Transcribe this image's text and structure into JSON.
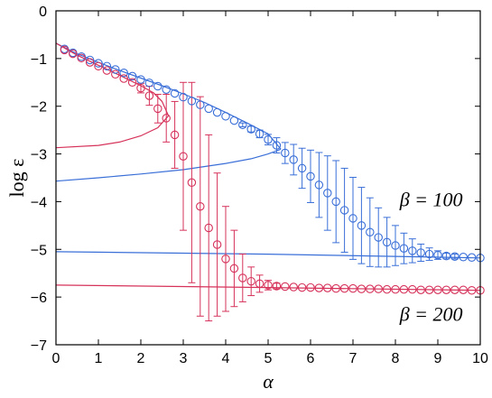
{
  "chart_data": {
    "type": "scatter",
    "xlabel": "α",
    "ylabel": "log ε",
    "xlim": [
      0,
      10
    ],
    "ylim": [
      -7,
      0
    ],
    "xticks": [
      0,
      1,
      2,
      3,
      4,
      5,
      6,
      7,
      8,
      9,
      10
    ],
    "yticks": [
      0,
      -1,
      -2,
      -3,
      -4,
      -5,
      -6,
      -7
    ],
    "grid": false,
    "legend": "none",
    "annotations": [
      {
        "text": "β = 100",
        "x": 8.1,
        "y": -4.1
      },
      {
        "text": "β = 200",
        "x": 8.1,
        "y": -6.5
      }
    ],
    "series": [
      {
        "color": "#3a6fd8",
        "points": [
          {
            "x": 0.2,
            "y": -0.8
          },
          {
            "x": 0.4,
            "y": -0.88
          },
          {
            "x": 0.6,
            "y": -0.96
          },
          {
            "x": 0.8,
            "y": -1.03
          },
          {
            "x": 1.0,
            "y": -1.1
          },
          {
            "x": 1.2,
            "y": -1.16
          },
          {
            "x": 1.4,
            "y": -1.23
          },
          {
            "x": 1.6,
            "y": -1.3
          },
          {
            "x": 1.8,
            "y": -1.37
          },
          {
            "x": 2.0,
            "y": -1.44
          },
          {
            "x": 2.2,
            "y": -1.51
          },
          {
            "x": 2.4,
            "y": -1.58
          },
          {
            "x": 2.6,
            "y": -1.65
          },
          {
            "x": 2.8,
            "y": -1.73
          },
          {
            "x": 3.0,
            "y": -1.81
          },
          {
            "x": 3.2,
            "y": -1.89
          },
          {
            "x": 3.4,
            "y": -1.97
          },
          {
            "x": 3.6,
            "y": -2.05
          },
          {
            "x": 3.8,
            "y": -2.13
          },
          {
            "x": 4.0,
            "y": -2.21
          },
          {
            "x": 4.2,
            "y": -2.3
          },
          {
            "x": 4.4,
            "y": -2.39,
            "err": 0.04
          },
          {
            "x": 4.6,
            "y": -2.48,
            "err": 0.06
          },
          {
            "x": 4.8,
            "y": -2.58,
            "err": 0.08
          },
          {
            "x": 5.0,
            "y": -2.7,
            "err": 0.11
          },
          {
            "x": 5.2,
            "y": -2.82,
            "err": 0.16
          },
          {
            "x": 5.4,
            "y": -2.98,
            "err": 0.22
          },
          {
            "x": 5.6,
            "y": -3.12,
            "err": 0.32
          },
          {
            "x": 5.8,
            "y": -3.3,
            "err": 0.42
          },
          {
            "x": 6.0,
            "y": -3.47,
            "err": 0.55
          },
          {
            "x": 6.2,
            "y": -3.65,
            "err": 0.68
          },
          {
            "x": 6.4,
            "y": -3.82,
            "err": 0.78
          },
          {
            "x": 6.6,
            "y": -4.0,
            "err": 0.86
          },
          {
            "x": 6.8,
            "y": -4.18,
            "err": 0.88
          },
          {
            "x": 7.0,
            "y": -4.35,
            "err": 0.86
          },
          {
            "x": 7.2,
            "y": -4.5,
            "err": 0.8
          },
          {
            "x": 7.4,
            "y": -4.64,
            "err": 0.72
          },
          {
            "x": 7.6,
            "y": -4.75,
            "err": 0.62
          },
          {
            "x": 7.8,
            "y": -4.85,
            "err": 0.52
          },
          {
            "x": 8.0,
            "y": -4.92,
            "err": 0.42
          },
          {
            "x": 8.2,
            "y": -4.98,
            "err": 0.32
          },
          {
            "x": 8.4,
            "y": -5.03,
            "err": 0.25
          },
          {
            "x": 8.6,
            "y": -5.07,
            "err": 0.18
          },
          {
            "x": 8.8,
            "y": -5.1,
            "err": 0.13
          },
          {
            "x": 9.0,
            "y": -5.12,
            "err": 0.09
          },
          {
            "x": 9.2,
            "y": -5.14,
            "err": 0.06
          },
          {
            "x": 9.4,
            "y": -5.15,
            "err": 0.05
          },
          {
            "x": 9.6,
            "y": -5.16
          },
          {
            "x": 9.8,
            "y": -5.17
          },
          {
            "x": 10.0,
            "y": -5.18
          }
        ],
        "curve_upper": [
          [
            0,
            -0.68
          ],
          [
            0.5,
            -0.9
          ],
          [
            1,
            -1.08
          ],
          [
            1.5,
            -1.25
          ],
          [
            2,
            -1.41
          ],
          [
            2.5,
            -1.57
          ],
          [
            3,
            -1.74
          ],
          [
            3.5,
            -1.92
          ],
          [
            4,
            -2.13
          ],
          [
            4.5,
            -2.35
          ],
          [
            5,
            -2.58
          ],
          [
            5.3,
            -2.9
          ]
        ],
        "curve_lower": [
          [
            0,
            -3.57
          ],
          [
            1,
            -3.5
          ],
          [
            2,
            -3.42
          ],
          [
            3,
            -3.33
          ],
          [
            4,
            -3.2
          ],
          [
            4.6,
            -3.1
          ],
          [
            5.0,
            -3.0
          ],
          [
            5.3,
            -2.9
          ]
        ],
        "curve_flat": [
          [
            0,
            -5.05
          ],
          [
            5,
            -5.1
          ],
          [
            10,
            -5.18
          ]
        ]
      },
      {
        "color": "#d6325a",
        "points": [
          {
            "x": 0.2,
            "y": -0.82
          },
          {
            "x": 0.4,
            "y": -0.9
          },
          {
            "x": 0.6,
            "y": -0.99
          },
          {
            "x": 0.8,
            "y": -1.08
          },
          {
            "x": 1.0,
            "y": -1.16
          },
          {
            "x": 1.2,
            "y": -1.25
          },
          {
            "x": 1.4,
            "y": -1.33
          },
          {
            "x": 1.6,
            "y": -1.42
          },
          {
            "x": 1.8,
            "y": -1.5
          },
          {
            "x": 2.0,
            "y": -1.62,
            "err": 0.1
          },
          {
            "x": 2.2,
            "y": -1.78,
            "err": 0.2
          },
          {
            "x": 2.4,
            "y": -2.05,
            "err": 0.3
          },
          {
            "x": 2.6,
            "y": -2.25,
            "err": 0.5
          },
          {
            "x": 2.8,
            "y": -2.6,
            "err": 0.7
          },
          {
            "x": 3.0,
            "y": -3.05,
            "err": 1.55
          },
          {
            "x": 3.2,
            "y": -3.6,
            "err": 2.1
          },
          {
            "x": 3.4,
            "y": -4.1,
            "err": 2.3
          },
          {
            "x": 3.6,
            "y": -4.55,
            "err": 1.95
          },
          {
            "x": 3.8,
            "y": -4.9,
            "err": 1.5
          },
          {
            "x": 4.0,
            "y": -5.2,
            "err": 1.1
          },
          {
            "x": 4.2,
            "y": -5.4,
            "err": 0.8
          },
          {
            "x": 4.4,
            "y": -5.6,
            "err": 0.5
          },
          {
            "x": 4.6,
            "y": -5.67,
            "err": 0.3
          },
          {
            "x": 4.8,
            "y": -5.72,
            "err": 0.18
          },
          {
            "x": 5.0,
            "y": -5.75,
            "err": 0.1
          },
          {
            "x": 5.2,
            "y": -5.77,
            "err": 0.06
          },
          {
            "x": 5.4,
            "y": -5.78
          },
          {
            "x": 5.6,
            "y": -5.79
          },
          {
            "x": 5.8,
            "y": -5.8
          },
          {
            "x": 6.0,
            "y": -5.8
          },
          {
            "x": 6.2,
            "y": -5.81
          },
          {
            "x": 6.4,
            "y": -5.81
          },
          {
            "x": 6.6,
            "y": -5.82
          },
          {
            "x": 6.8,
            "y": -5.82
          },
          {
            "x": 7.0,
            "y": -5.82
          },
          {
            "x": 7.2,
            "y": -5.83
          },
          {
            "x": 7.4,
            "y": -5.83
          },
          {
            "x": 7.6,
            "y": -5.83
          },
          {
            "x": 7.8,
            "y": -5.84
          },
          {
            "x": 8.0,
            "y": -5.84
          },
          {
            "x": 8.2,
            "y": -5.84
          },
          {
            "x": 8.4,
            "y": -5.84
          },
          {
            "x": 8.6,
            "y": -5.85
          },
          {
            "x": 8.8,
            "y": -5.85
          },
          {
            "x": 9.0,
            "y": -5.85
          },
          {
            "x": 9.2,
            "y": -5.85
          },
          {
            "x": 9.4,
            "y": -5.85
          },
          {
            "x": 9.6,
            "y": -5.85
          },
          {
            "x": 9.8,
            "y": -5.86
          },
          {
            "x": 10.0,
            "y": -5.86
          }
        ],
        "curve_upper": [
          [
            0,
            -0.68
          ],
          [
            0.5,
            -0.93
          ],
          [
            1,
            -1.14
          ],
          [
            1.5,
            -1.35
          ],
          [
            2,
            -1.57
          ],
          [
            2.3,
            -1.72
          ],
          [
            2.5,
            -1.9
          ],
          [
            2.65,
            -2.2
          ]
        ],
        "curve_lower": [
          [
            0,
            -2.87
          ],
          [
            1,
            -2.82
          ],
          [
            1.5,
            -2.75
          ],
          [
            2,
            -2.62
          ],
          [
            2.4,
            -2.45
          ],
          [
            2.65,
            -2.2
          ]
        ],
        "curve_flat": [
          [
            0,
            -5.75
          ],
          [
            5,
            -5.8
          ],
          [
            10,
            -5.86
          ]
        ]
      }
    ]
  }
}
